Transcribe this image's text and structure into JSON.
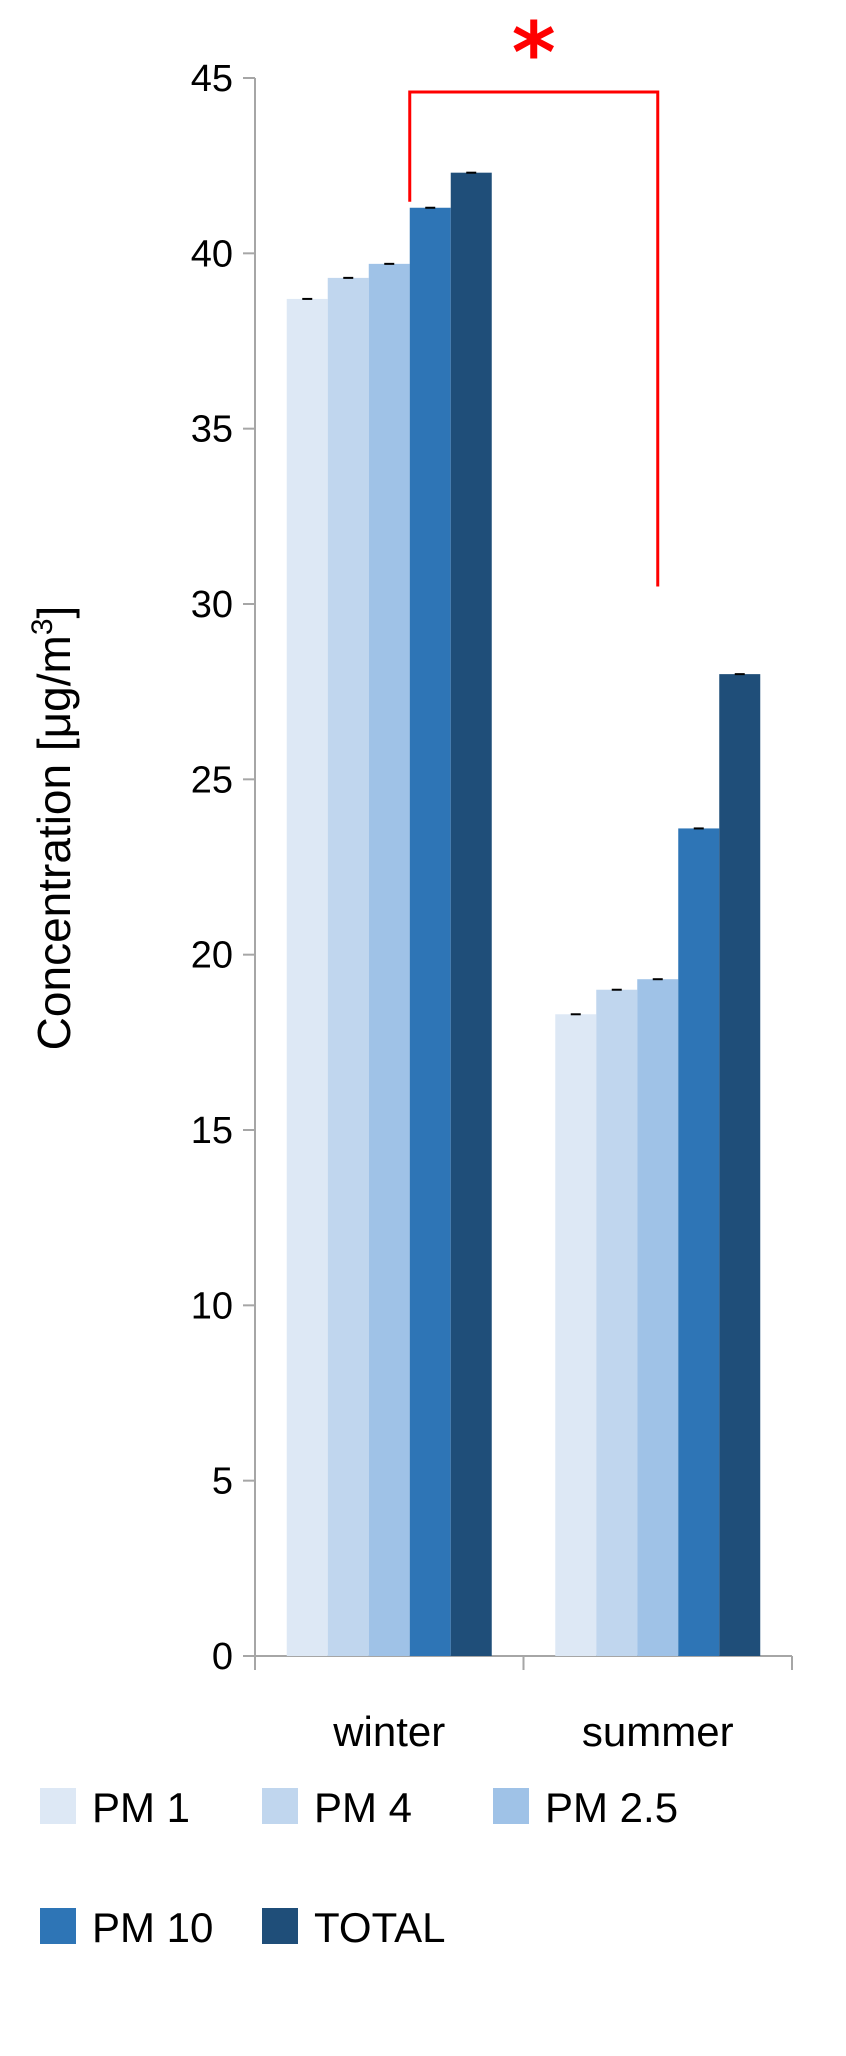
{
  "chart_data": {
    "type": "bar",
    "categories": [
      "winter",
      "summer"
    ],
    "series": [
      {
        "name": "PM 1",
        "values": [
          38.7,
          18.3
        ],
        "color": "#dde8f5"
      },
      {
        "name": "PM 4",
        "values": [
          39.3,
          19.0
        ],
        "color": "#c0d6ee"
      },
      {
        "name": "PM 2.5",
        "values": [
          39.7,
          19.3
        ],
        "color": "#9fc2e7"
      },
      {
        "name": "PM 10",
        "values": [
          41.3,
          23.6
        ],
        "color": "#2e75b6"
      },
      {
        "name": "TOTAL",
        "values": [
          42.3,
          28.0
        ],
        "color": "#1f4e79"
      }
    ],
    "ylabel": "Concentration [μg/m",
    "ylabel_sup": "3",
    "ylabel_close": "]",
    "ylim": [
      0,
      45
    ],
    "yticks": [
      "0",
      "5",
      "10",
      "15",
      "20",
      "25",
      "30",
      "35",
      "40",
      "45"
    ],
    "ytick_values": [
      0,
      5,
      10,
      15,
      20,
      25,
      30,
      35,
      40,
      45
    ],
    "legend_position": "bottom",
    "annotation": {
      "text": "*",
      "color": "#ff0000"
    },
    "grid": false
  }
}
